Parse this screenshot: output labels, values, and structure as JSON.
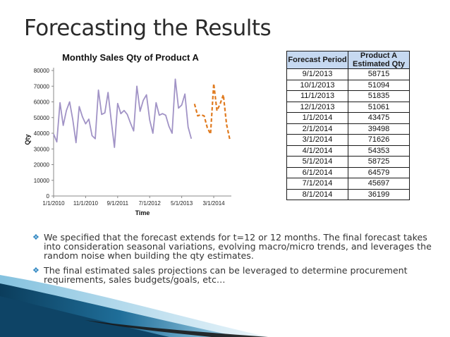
{
  "slide": {
    "title": "Forecasting the Results"
  },
  "chart_data": {
    "type": "line",
    "title": "Monthly Sales Qty of Product A",
    "xlabel": "Time",
    "ylabel": "Qty",
    "ylim": [
      0,
      80000
    ],
    "yticks": [
      "0",
      "10000",
      "20000",
      "30000",
      "40000",
      "50000",
      "60000",
      "70000",
      "80000"
    ],
    "xticks": [
      "1/1/2010",
      "11/1/2010",
      "9/1/2011",
      "7/1/2012",
      "5/1/2013",
      "3/1/2014"
    ],
    "grid": false,
    "series": [
      {
        "name": "",
        "color": "#a193c6",
        "style": "solid",
        "start": "1/1/2010",
        "values": [
          39500,
          34500,
          59500,
          45000,
          54500,
          60000,
          48500,
          34000,
          57000,
          50500,
          46000,
          49000,
          38500,
          36500,
          67500,
          52000,
          53000,
          66000,
          48000,
          31000,
          59000,
          52500,
          54500,
          52000,
          46500,
          41500,
          70000,
          54000,
          61000,
          64500,
          48500,
          40000,
          59500,
          51500,
          52500,
          51500,
          44500,
          40000,
          74500,
          56000,
          58000,
          65000,
          44000,
          36500
        ]
      },
      {
        "name": "",
        "color": "#e07b20",
        "style": "dashed",
        "start": "9/1/2013",
        "values": [
          58715,
          51094,
          51835,
          51061,
          43475,
          39498,
          71626,
          54353,
          58725,
          64579,
          45697,
          36199
        ]
      }
    ]
  },
  "table": {
    "headers": {
      "period": "Forecast Period",
      "qty_line1": "Product A",
      "qty_line2": "Estimated Qty"
    },
    "rows": [
      {
        "period": "9/1/2013",
        "qty": "58715"
      },
      {
        "period": "10/1/2013",
        "qty": "51094"
      },
      {
        "period": "11/1/2013",
        "qty": "51835"
      },
      {
        "period": "12/1/2013",
        "qty": "51061"
      },
      {
        "period": "1/1/2014",
        "qty": "43475"
      },
      {
        "period": "2/1/2014",
        "qty": "39498"
      },
      {
        "period": "3/1/2014",
        "qty": "71626"
      },
      {
        "period": "4/1/2014",
        "qty": "54353"
      },
      {
        "period": "5/1/2014",
        "qty": "58725"
      },
      {
        "period": "6/1/2014",
        "qty": "64579"
      },
      {
        "period": "7/1/2014",
        "qty": "45697"
      },
      {
        "period": "8/1/2014",
        "qty": "36199"
      }
    ]
  },
  "bullets": {
    "icon": "diamond-bullet-icon",
    "items": [
      "We specified that the forecast extends for t=12 or 12 months. The final forecast takes into consideration seasonal variations, evolving macro/micro trends, and leverages the random noise when building the qty estimates.",
      "The final estimated sales projections can be leveraged to determine procurement requirements, sales budgets/goals, etc…"
    ]
  }
}
